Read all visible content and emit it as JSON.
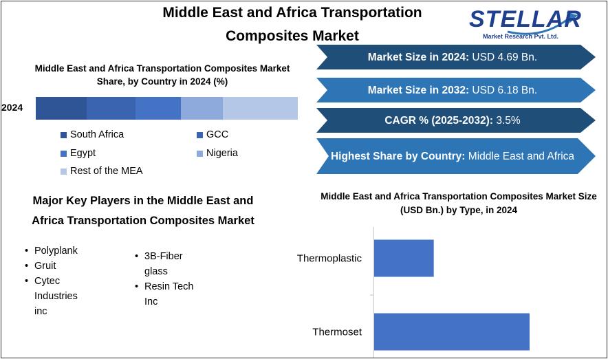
{
  "title": "Middle East and Africa Transportation Composites Market",
  "logo": {
    "word": "STELLAR",
    "tagline": "Market Research Pvt. Ltd."
  },
  "stats": [
    {
      "label": "Market Size in 2024:",
      "value": "USD  4.69 Bn."
    },
    {
      "label": "Market Size in 2032:",
      "value": "USD 6.18 Bn."
    },
    {
      "label": "CAGR % (2025-2032):",
      "value": "3.5%"
    },
    {
      "label": "Highest Share by Country:",
      "value": "Middle East and Africa"
    }
  ],
  "colors": {
    "banner_dark": "#1f4e79",
    "banner_light": "#2e75b6",
    "bar_fill": "#4472c4"
  },
  "players": {
    "title": "Major Key Players in the Middle East and Africa Transportation Composites Market",
    "column_1": [
      "Polyplank",
      "Gruit",
      "Cytec Industries inc"
    ],
    "column_2": [
      "3B-Fiberglass",
      "Resin Tech Inc"
    ]
  },
  "chart_data": [
    {
      "type": "bar",
      "orientation": "horizontal-stacked",
      "title": "Middle East and Africa Transportation Composites Market Share, by Country in 2024 (%)",
      "categories": [
        "2024"
      ],
      "series": [
        {
          "name": "South Africa",
          "values": [
            19.5
          ],
          "color": "#2f5597"
        },
        {
          "name": "GCC",
          "values": [
            18.5
          ],
          "color": "#3b64b0"
        },
        {
          "name": "Egypt",
          "values": [
            17.5
          ],
          "color": "#4472c4"
        },
        {
          "name": "Nigeria",
          "values": [
            16.0
          ],
          "color": "#8ea9db"
        },
        {
          "name": "Rest of the MEA",
          "values": [
            28.5
          ],
          "color": "#b4c7e7"
        }
      ],
      "xlim": [
        0,
        100
      ],
      "grid": false,
      "legend": "bottom"
    },
    {
      "type": "bar",
      "orientation": "horizontal",
      "title": "Middle East and Africa Transportation Composites Market Size (USD Bn.) by Type, in 2024",
      "categories": [
        "Thermoplastic",
        "Thermoset"
      ],
      "values": [
        1.3,
        3.39
      ],
      "xlim": [
        0,
        4.5
      ],
      "grid": false
    }
  ]
}
